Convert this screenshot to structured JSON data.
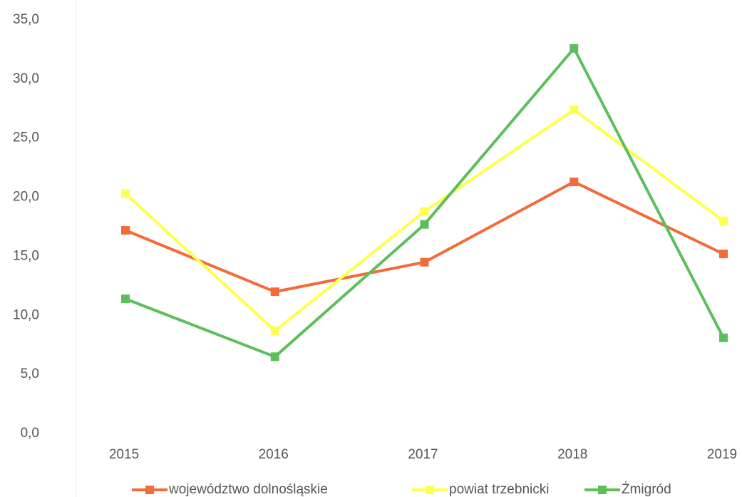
{
  "chart_data": {
    "type": "line",
    "categories": [
      "2015",
      "2016",
      "2017",
      "2018",
      "2019"
    ],
    "series": [
      {
        "name": "województwo dolnośląskie",
        "color": "#f26b3a",
        "values": [
          17.2,
          12.0,
          14.5,
          21.3,
          15.2
        ]
      },
      {
        "name": "powiat trzebnicki",
        "color": "#ffff4d",
        "values": [
          20.3,
          8.7,
          18.8,
          27.4,
          18.0
        ]
      },
      {
        "name": "Żmigród",
        "color": "#5cbf5c",
        "values": [
          11.4,
          6.5,
          17.7,
          32.6,
          8.1
        ]
      }
    ],
    "ylim": [
      0,
      35
    ],
    "yticks": [
      {
        "value": 0,
        "label": "0,0"
      },
      {
        "value": 5,
        "label": "5,0"
      },
      {
        "value": 10,
        "label": "10,0"
      },
      {
        "value": 15,
        "label": "15,0"
      },
      {
        "value": 20,
        "label": "20,0"
      },
      {
        "value": 25,
        "label": "25,0"
      },
      {
        "value": 30,
        "label": "30,0"
      },
      {
        "value": 35,
        "label": "35,0"
      }
    ],
    "legend": "bottom"
  }
}
